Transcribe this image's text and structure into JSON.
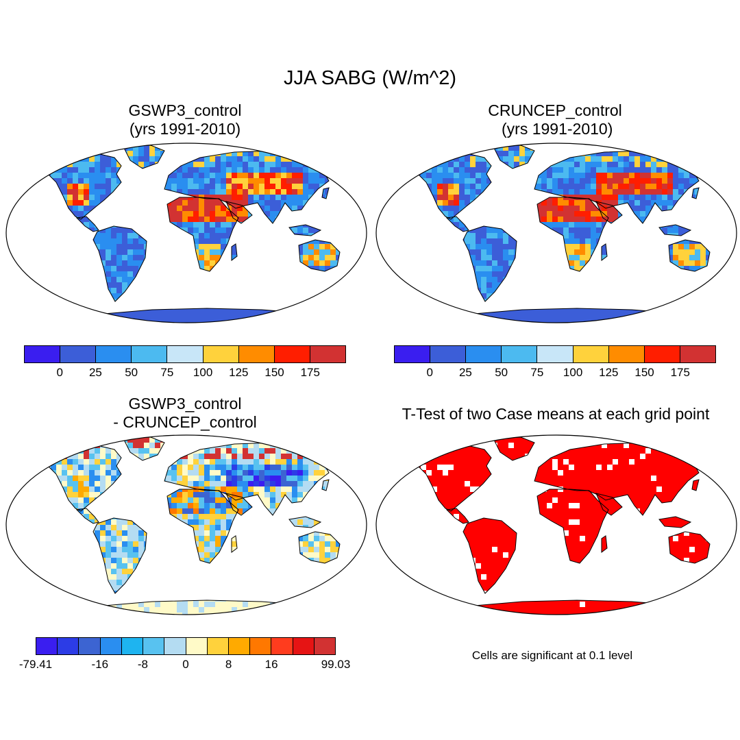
{
  "title": "JJA SABG (W/m^2)",
  "panels": [
    {
      "id": "gswp3",
      "title": "GSWP3_control\n(yrs 1991-2010)"
    },
    {
      "id": "cruncep",
      "title": "CRUNCEP_control\n (yrs 1991-2010)"
    },
    {
      "id": "diff",
      "title": "GSWP3_control\n- CRUNCEP_control"
    },
    {
      "id": "ttest",
      "title": "T-Test of two Case means at each grid point"
    }
  ],
  "colorbar_abs": {
    "colors": [
      "#3a1ef0",
      "#3c5ed8",
      "#2a8ef0",
      "#4cbaf0",
      "#c8e6f8",
      "#ffd23c",
      "#ff8c00",
      "#ff1e00",
      "#d23232"
    ],
    "ticks": [
      "0",
      "25",
      "50",
      "75",
      "100",
      "125",
      "150",
      "175"
    ]
  },
  "colorbar_diff": {
    "colors": [
      "#3a1ef0",
      "#2c3ce6",
      "#3c64d2",
      "#2a8ef0",
      "#1eb4f0",
      "#58c2f0",
      "#b4dcf2",
      "#fffac8",
      "#ffd23c",
      "#ffaa00",
      "#ff7800",
      "#ff3c1e",
      "#e61414",
      "#d23232"
    ],
    "ticks": [
      "-79.41",
      "-16",
      "-8",
      "0",
      "8",
      "16",
      "99.03"
    ]
  },
  "note": "Cells are significant at 0.1 level"
}
